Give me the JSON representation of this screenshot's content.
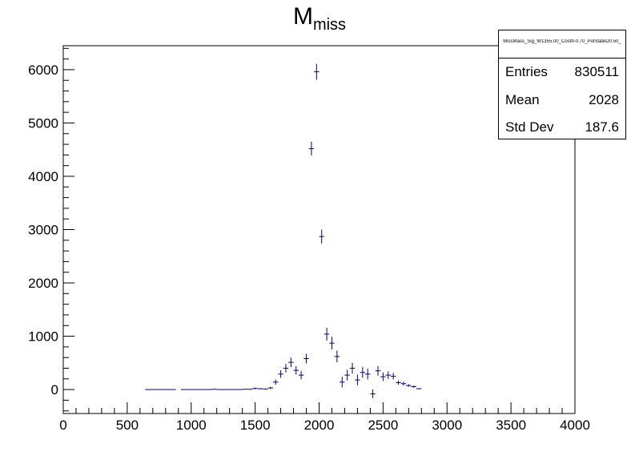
{
  "chart_data": {
    "type": "scatter",
    "title_main": "M",
    "title_sub": "miss",
    "xlim": [
      0,
      4000
    ],
    "ylim": [
      -450,
      6450
    ],
    "x_ticks": [
      0,
      500,
      1000,
      1500,
      2000,
      2500,
      3000,
      3500,
      4000
    ],
    "y_ticks": [
      0,
      1000,
      2000,
      3000,
      4000,
      5000,
      6000
    ],
    "grid": false,
    "bin_width": 40,
    "points": [
      {
        "x": 660,
        "y": 0,
        "e": 0
      },
      {
        "x": 700,
        "y": 0,
        "e": 0
      },
      {
        "x": 740,
        "y": 0,
        "e": 0
      },
      {
        "x": 780,
        "y": 0,
        "e": 0
      },
      {
        "x": 820,
        "y": 0,
        "e": 0
      },
      {
        "x": 860,
        "y": 0,
        "e": 0
      },
      {
        "x": 940,
        "y": 0,
        "e": 0
      },
      {
        "x": 980,
        "y": 0,
        "e": 0
      },
      {
        "x": 1020,
        "y": 0,
        "e": 0
      },
      {
        "x": 1060,
        "y": 0,
        "e": 0
      },
      {
        "x": 1100,
        "y": 0,
        "e": 0
      },
      {
        "x": 1140,
        "y": 0,
        "e": 0
      },
      {
        "x": 1180,
        "y": 5,
        "e": 5
      },
      {
        "x": 1220,
        "y": 0,
        "e": 0
      },
      {
        "x": 1260,
        "y": 0,
        "e": 0
      },
      {
        "x": 1300,
        "y": 0,
        "e": 0
      },
      {
        "x": 1340,
        "y": 0,
        "e": 0
      },
      {
        "x": 1380,
        "y": 0,
        "e": 0
      },
      {
        "x": 1420,
        "y": 5,
        "e": 5
      },
      {
        "x": 1460,
        "y": 5,
        "e": 5
      },
      {
        "x": 1500,
        "y": 20,
        "e": 15
      },
      {
        "x": 1540,
        "y": 15,
        "e": 10
      },
      {
        "x": 1580,
        "y": 10,
        "e": 10
      },
      {
        "x": 1620,
        "y": 30,
        "e": 20
      },
      {
        "x": 1660,
        "y": 140,
        "e": 50
      },
      {
        "x": 1700,
        "y": 290,
        "e": 70
      },
      {
        "x": 1740,
        "y": 400,
        "e": 80
      },
      {
        "x": 1780,
        "y": 510,
        "e": 90
      },
      {
        "x": 1820,
        "y": 360,
        "e": 80
      },
      {
        "x": 1860,
        "y": 270,
        "e": 80
      },
      {
        "x": 1900,
        "y": 580,
        "e": 90
      },
      {
        "x": 1940,
        "y": 4520,
        "e": 130
      },
      {
        "x": 1980,
        "y": 5960,
        "e": 150
      },
      {
        "x": 2020,
        "y": 2870,
        "e": 130
      },
      {
        "x": 2060,
        "y": 1040,
        "e": 120
      },
      {
        "x": 2100,
        "y": 870,
        "e": 120
      },
      {
        "x": 2140,
        "y": 620,
        "e": 110
      },
      {
        "x": 2180,
        "y": 140,
        "e": 100
      },
      {
        "x": 2220,
        "y": 270,
        "e": 100
      },
      {
        "x": 2260,
        "y": 400,
        "e": 100
      },
      {
        "x": 2300,
        "y": 180,
        "e": 100
      },
      {
        "x": 2340,
        "y": 320,
        "e": 100
      },
      {
        "x": 2380,
        "y": 290,
        "e": 100
      },
      {
        "x": 2420,
        "y": -80,
        "e": 80
      },
      {
        "x": 2460,
        "y": 350,
        "e": 90
      },
      {
        "x": 2500,
        "y": 240,
        "e": 80
      },
      {
        "x": 2540,
        "y": 270,
        "e": 70
      },
      {
        "x": 2580,
        "y": 250,
        "e": 60
      },
      {
        "x": 2620,
        "y": 130,
        "e": 40
      },
      {
        "x": 2660,
        "y": 110,
        "e": 35
      },
      {
        "x": 2700,
        "y": 75,
        "e": 25
      },
      {
        "x": 2740,
        "y": 55,
        "e": 20
      },
      {
        "x": 2780,
        "y": 15,
        "e": 10
      }
    ],
    "marker_color": "#000080",
    "axis_color": "#000000",
    "stats": {
      "name": "MissMass_Sig_W1355.00_Costh-0.70_PolStateD0.50_",
      "entries_label": "Entries",
      "entries_value": "830511",
      "mean_label": "Mean",
      "mean_value": "2028",
      "std_label": "Std Dev",
      "std_value": "187.6"
    }
  }
}
